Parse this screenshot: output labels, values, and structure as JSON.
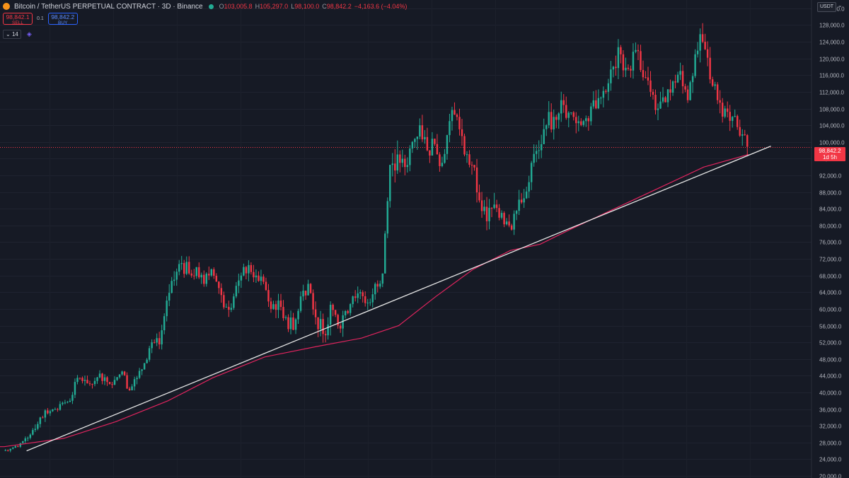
{
  "header": {
    "title": "Bitcoin / TetherUS PERPETUAL CONTRACT · 3D · Binance",
    "ohlc": [
      {
        "key": "O",
        "value": "103,005.8"
      },
      {
        "key": "H",
        "value": "105,297.0"
      },
      {
        "key": "L",
        "value": "98,100.0"
      },
      {
        "key": "C",
        "value": "98,842.2"
      }
    ],
    "change": "−4,163.6 (−4.04%)"
  },
  "trade": {
    "sell_price": "98,842.1",
    "sell_label": "SELL",
    "spread": "0.1",
    "buy_price": "98,842.2",
    "buy_label": "BUY"
  },
  "indicators": {
    "count": "14"
  },
  "axis": {
    "currency": "USDT"
  },
  "price_tag": {
    "price": "98,842.2",
    "countdown": "1d 5h"
  },
  "colors": {
    "background": "#161a25",
    "up": "#22ab94",
    "down": "#f23645",
    "moving_average": "#e0245e",
    "trendline": "#e6e6e6"
  },
  "chart_data": {
    "type": "candlestick",
    "interval": "3D",
    "y_tick_labels": [
      "20,000.0",
      "24,000.0",
      "28,000.0",
      "32,000.0",
      "36,000.0",
      "40,000.0",
      "44,000.0",
      "48,000.0",
      "52,000.0",
      "56,000.0",
      "60,000.0",
      "64,000.0",
      "68,000.0",
      "72,000.0",
      "76,000.0",
      "80,000.0",
      "84,000.0",
      "88,000.0",
      "92,000.0",
      "96,000.0",
      "100,000.0",
      "104,000.0",
      "108,000.0",
      "112,000.0",
      "116,000.0",
      "120,000.0",
      "124,000.0",
      "128,000.0",
      "132,000.0"
    ],
    "ylim": [
      19500,
      134000
    ],
    "last_price": 98842.2,
    "close_path": [
      26000,
      26500,
      27000,
      29000,
      31000,
      34000,
      35000,
      36000,
      37500,
      38000,
      43500,
      43000,
      42000,
      44500,
      42500,
      43000,
      45000,
      40500,
      43500,
      47000,
      52000,
      51500,
      62000,
      67000,
      71000,
      68500,
      70000,
      66000,
      69500,
      65000,
      60500,
      63000,
      68000,
      70500,
      68000,
      66500,
      60000,
      62000,
      58000,
      55000,
      63000,
      66000,
      58000,
      54000,
      61000,
      56000,
      59500,
      63000,
      64000,
      61500,
      66000,
      68500,
      94500,
      97000,
      94000,
      100000,
      104000,
      98000,
      99500,
      95000,
      105000,
      106000,
      97000,
      94500,
      86000,
      81000,
      85000,
      83000,
      80000,
      83500,
      86500,
      95000,
      98000,
      104000,
      106000,
      110000,
      107000,
      104500,
      105000,
      108500,
      110500,
      112000,
      118000,
      121000,
      117500,
      122000,
      115500,
      112000,
      108000,
      109500,
      114500,
      117000,
      110000,
      121000,
      124000,
      115000,
      110000,
      108000,
      106000,
      101500,
      98842
    ],
    "volatility": [
      800,
      800,
      800,
      1200,
      1800,
      2000,
      1400,
      1200,
      1300,
      1500,
      2500,
      1800,
      1500,
      1900,
      1700,
      1600,
      1800,
      2200,
      1900,
      2200,
      2800,
      2300,
      3500,
      3200,
      3300,
      2800,
      2900,
      3200,
      3100,
      3400,
      3400,
      3100,
      3300,
      3100,
      2900,
      2900,
      3600,
      3100,
      3400,
      3500,
      3600,
      3300,
      3800,
      4600,
      3700,
      3500,
      3300,
      3100,
      3200,
      3000,
      3100,
      3300,
      6000,
      4200,
      3900,
      4400,
      4400,
      4000,
      4000,
      4100,
      4300,
      4300,
      4200,
      4100,
      4800,
      4700,
      4300,
      4100,
      4200,
      4100,
      4000,
      4400,
      4300,
      4400,
      4200,
      4600,
      4500,
      4300,
      4000,
      4200,
      4200,
      4300,
      4800,
      4700,
      4400,
      4500,
      4600,
      4300,
      4200,
      4100,
      4300,
      4300,
      4500,
      4800,
      4700,
      4700,
      4400,
      4300,
      4300,
      4200,
      3000
    ],
    "moving_average": {
      "x_index": [
        0,
        8,
        15,
        22,
        28,
        35,
        42,
        48,
        53,
        58,
        63,
        68,
        72,
        76,
        82,
        88,
        94,
        100
      ],
      "values": [
        27000,
        29000,
        33000,
        38000,
        43500,
        48500,
        51000,
        53000,
        56000,
        63000,
        69500,
        74000,
        75500,
        79000,
        84000,
        89000,
        94000,
        97000
      ]
    },
    "trendline": {
      "x_index": [
        3,
        103
      ],
      "values": [
        26000,
        99000
      ]
    }
  }
}
